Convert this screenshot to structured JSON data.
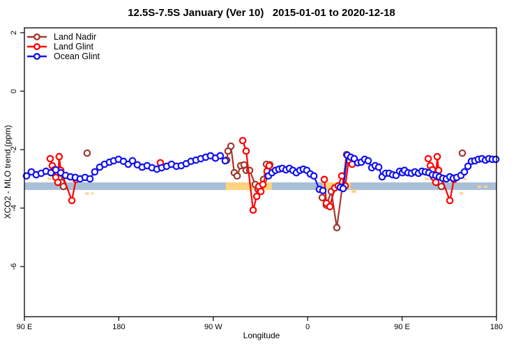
{
  "window": {
    "kind": "statistical-plot"
  },
  "chart_data": {
    "type": "line",
    "title": "12.5S-7.5S January (Ver 10)   2015-01-01 to 2020-12-18",
    "xlabel": "Longitude",
    "ylabel": "XCO2 - MLO trend (ppm)",
    "x_axis": {
      "range": [
        0,
        450
      ],
      "note": "display axis spans 450 deg of longitude starting at 90E and wrapping past the dateline",
      "ticks": [
        {
          "pos": 0,
          "label": "90 E"
        },
        {
          "pos": 90,
          "label": "180"
        },
        {
          "pos": 180,
          "label": "90 W"
        },
        {
          "pos": 270,
          "label": "0"
        },
        {
          "pos": 360,
          "label": "90 E"
        },
        {
          "pos": 450,
          "label": "180"
        }
      ]
    },
    "y_axis": {
      "range": [
        -7.7,
        2.17
      ],
      "ticks": [
        2,
        0,
        -2,
        -4,
        -6
      ]
    },
    "grid": false,
    "legend_position": "top-left-inside",
    "colors": {
      "land_nadir": "#a1392d",
      "land_glint": "#ff0000",
      "ocean_glint": "#1212ee",
      "band": "#a9bfd8",
      "highlight": "#fed47f",
      "axis": "#000000"
    },
    "reference_band": {
      "ppm_top": -3.12,
      "ppm_bottom": -3.38,
      "x_range": [
        0,
        450
      ]
    },
    "highlight_patches": [
      {
        "type": "rect",
        "x": [
          192,
          236
        ],
        "ppm": [
          -3.12,
          -3.38
        ]
      },
      {
        "type": "rect",
        "x": [
          284.5,
          311
        ],
        "ppm": [
          -3.12,
          -3.36
        ]
      },
      {
        "type": "rect",
        "x": [
          312,
          316
        ],
        "ppm": [
          -3.36,
          -3.48
        ]
      },
      {
        "type": "dash",
        "x": [
          22,
          66
        ],
        "ppm": -3.0
      },
      {
        "type": "dash",
        "x": [
          58,
          66
        ],
        "ppm": -3.5
      },
      {
        "type": "dash",
        "x": [
          382,
          424
        ],
        "ppm": -3.0
      },
      {
        "type": "dash",
        "x": [
          415,
          421
        ],
        "ppm": -3.5
      },
      {
        "type": "dash",
        "x": [
          432,
          444
        ],
        "ppm": -3.27
      }
    ],
    "series": [
      {
        "id": "land_nadir",
        "name": "Land Nadir",
        "color_key": "land_nadir",
        "segments": [
          [
            [
              28.6,
              -2.67
            ],
            [
              31.2,
              -2.83
            ],
            [
              33.2,
              -2.98
            ],
            [
              35.2,
              -3.12
            ],
            [
              37.2,
              -3.26
            ]
          ],
          [
            [
              59.8,
              -2.12
            ]
          ],
          [
            [
              192.8,
              -2.36
            ],
            [
              194.1,
              -2.05
            ],
            [
              196.8,
              -1.88
            ],
            [
              200.1,
              -2.79
            ],
            [
              202.8,
              -2.9
            ],
            [
              206.1,
              -2.55
            ],
            [
              209.4,
              -2.52
            ],
            [
              211.4,
              -2.71
            ],
            [
              214.7,
              -2.71
            ],
            [
              220.0,
              -3.19
            ],
            [
              222.7,
              -3.36
            ],
            [
              224.7,
              -3.38
            ],
            [
              228.0,
              -3.02
            ],
            [
              230.7,
              -2.5
            ],
            [
              234.0,
              -2.52
            ]
          ],
          [
            [
              283.9,
              -3.64
            ],
            [
              287.8,
              -3.9
            ],
            [
              292.5,
              -3.43
            ],
            [
              297.8,
              -4.67
            ],
            [
              307.1,
              -2.17
            ]
          ],
          [
            [
              388.9,
              -2.67
            ],
            [
              391.5,
              -2.83
            ],
            [
              393.5,
              -2.98
            ],
            [
              395.5,
              -3.12
            ],
            [
              397.5,
              -3.26
            ]
          ],
          [
            [
              417.4,
              -2.12
            ]
          ]
        ]
      },
      {
        "id": "land_glint",
        "name": "Land Glint",
        "color_key": "land_glint",
        "segments": [
          [
            [
              24.6,
              -2.31
            ],
            [
              26.6,
              -2.55
            ],
            [
              28.6,
              -2.69
            ],
            [
              29.9,
              -2.95
            ],
            [
              31.9,
              -3.12
            ],
            [
              33.2,
              -2.24
            ],
            [
              34.6,
              -2.71
            ],
            [
              45.2,
              -3.74
            ],
            [
              49.2,
              -3.02
            ]
          ],
          [
            [
              129.6,
              -2.45
            ]
          ],
          [
            [
              208.1,
              -1.69
            ],
            [
              211.4,
              -2.05
            ],
            [
              218.0,
              -4.07
            ],
            [
              221.4,
              -3.6
            ],
            [
              223.4,
              -3.26
            ],
            [
              225.4,
              -3.43
            ],
            [
              227.3,
              -3.19
            ],
            [
              231.3,
              -2.74
            ],
            [
              233.3,
              -2.55
            ]
          ],
          [
            [
              285.9,
              -3.02
            ],
            [
              287.8,
              -3.83
            ],
            [
              291.2,
              -3.95
            ],
            [
              295.8,
              -3.31
            ],
            [
              299.1,
              -3.24
            ],
            [
              302.5,
              -2.9
            ],
            [
              305.8,
              -3.24
            ],
            [
              309.1,
              -2.36
            ],
            [
              312.4,
              -2.5
            ]
          ],
          [
            [
              384.9,
              -2.31
            ],
            [
              386.9,
              -2.55
            ],
            [
              388.9,
              -2.69
            ],
            [
              390.2,
              -2.95
            ],
            [
              392.2,
              -3.12
            ],
            [
              393.5,
              -2.24
            ],
            [
              394.8,
              -2.71
            ],
            [
              405.5,
              -3.74
            ],
            [
              409.5,
              -3.02
            ]
          ]
        ]
      },
      {
        "id": "ocean_glint",
        "name": "Ocean Glint",
        "color_key": "ocean_glint",
        "segments": [
          [
            [
              2.0,
              -2.9
            ],
            [
              6.6,
              -2.76
            ],
            [
              11.3,
              -2.86
            ],
            [
              16.0,
              -2.81
            ],
            [
              20.6,
              -2.74
            ],
            [
              25.3,
              -2.79
            ],
            [
              29.9,
              -2.69
            ],
            [
              34.6,
              -2.79
            ],
            [
              39.2,
              -2.88
            ],
            [
              43.9,
              -2.93
            ],
            [
              48.5,
              -2.95
            ],
            [
              53.2,
              -3.0
            ],
            [
              57.8,
              -2.95
            ],
            [
              62.5,
              -3.0
            ],
            [
              67.1,
              -2.76
            ],
            [
              71.8,
              -2.6
            ],
            [
              76.4,
              -2.5
            ],
            [
              81.1,
              -2.43
            ],
            [
              85.1,
              -2.38
            ],
            [
              89.7,
              -2.33
            ],
            [
              94.4,
              -2.4
            ],
            [
              99.0,
              -2.5
            ],
            [
              103.0,
              -2.38
            ],
            [
              107.7,
              -2.52
            ],
            [
              112.3,
              -2.6
            ],
            [
              117.0,
              -2.55
            ],
            [
              121.6,
              -2.62
            ],
            [
              126.3,
              -2.67
            ],
            [
              130.9,
              -2.62
            ],
            [
              135.6,
              -2.57
            ],
            [
              140.2,
              -2.5
            ],
            [
              144.9,
              -2.57
            ],
            [
              149.5,
              -2.55
            ],
            [
              154.2,
              -2.48
            ],
            [
              158.8,
              -2.4
            ],
            [
              163.5,
              -2.36
            ],
            [
              168.1,
              -2.31
            ],
            [
              172.8,
              -2.26
            ],
            [
              177.4,
              -2.21
            ],
            [
              182.1,
              -2.29
            ],
            [
              186.7,
              -2.21
            ],
            [
              191.4,
              -2.38
            ]
          ],
          [
            [
              232.6,
              -2.9
            ],
            [
              236.0,
              -2.79
            ],
            [
              239.3,
              -2.71
            ],
            [
              242.6,
              -2.67
            ],
            [
              245.9,
              -2.64
            ],
            [
              249.3,
              -2.69
            ],
            [
              252.6,
              -2.64
            ],
            [
              255.9,
              -2.71
            ],
            [
              259.2,
              -2.79
            ],
            [
              262.6,
              -2.71
            ],
            [
              265.9,
              -2.67
            ],
            [
              269.2,
              -2.71
            ],
            [
              272.5,
              -2.83
            ],
            [
              275.9,
              -2.9
            ],
            [
              281.2,
              -3.36
            ],
            [
              284.5,
              -3.4
            ]
          ],
          [
            [
              301.1,
              -3.29
            ],
            [
              303.8,
              -3.33
            ],
            [
              307.8,
              -2.19
            ],
            [
              311.1,
              -2.26
            ],
            [
              314.4,
              -2.31
            ],
            [
              317.8,
              -2.45
            ],
            [
              321.1,
              -2.43
            ],
            [
              324.4,
              -2.33
            ],
            [
              327.7,
              -2.38
            ],
            [
              331.1,
              -2.62
            ],
            [
              334.4,
              -2.55
            ],
            [
              337.7,
              -2.6
            ],
            [
              341.0,
              -2.93
            ],
            [
              344.4,
              -2.81
            ],
            [
              347.7,
              -2.81
            ],
            [
              351.0,
              -2.86
            ],
            [
              354.3,
              -2.88
            ],
            [
              357.7,
              -2.74
            ],
            [
              360.3,
              -2.79
            ],
            [
              362.3,
              -2.71
            ],
            [
              365.6,
              -2.79
            ],
            [
              368.9,
              -2.81
            ],
            [
              372.2,
              -2.76
            ],
            [
              375.6,
              -2.81
            ],
            [
              378.9,
              -2.74
            ],
            [
              382.2,
              -2.76
            ],
            [
              385.5,
              -2.79
            ],
            [
              388.9,
              -2.86
            ],
            [
              392.2,
              -2.88
            ],
            [
              395.5,
              -2.93
            ],
            [
              398.8,
              -2.98
            ],
            [
              402.2,
              -3.0
            ],
            [
              405.5,
              -2.93
            ],
            [
              408.8,
              -2.98
            ],
            [
              412.1,
              -2.95
            ],
            [
              416.1,
              -2.88
            ],
            [
              419.4,
              -2.76
            ],
            [
              422.8,
              -2.57
            ],
            [
              426.1,
              -2.4
            ],
            [
              429.4,
              -2.38
            ],
            [
              432.7,
              -2.33
            ],
            [
              436.1,
              -2.31
            ],
            [
              439.4,
              -2.36
            ],
            [
              442.7,
              -2.31
            ],
            [
              446.0,
              -2.33
            ],
            [
              449.4,
              -2.33
            ]
          ]
        ]
      }
    ]
  }
}
